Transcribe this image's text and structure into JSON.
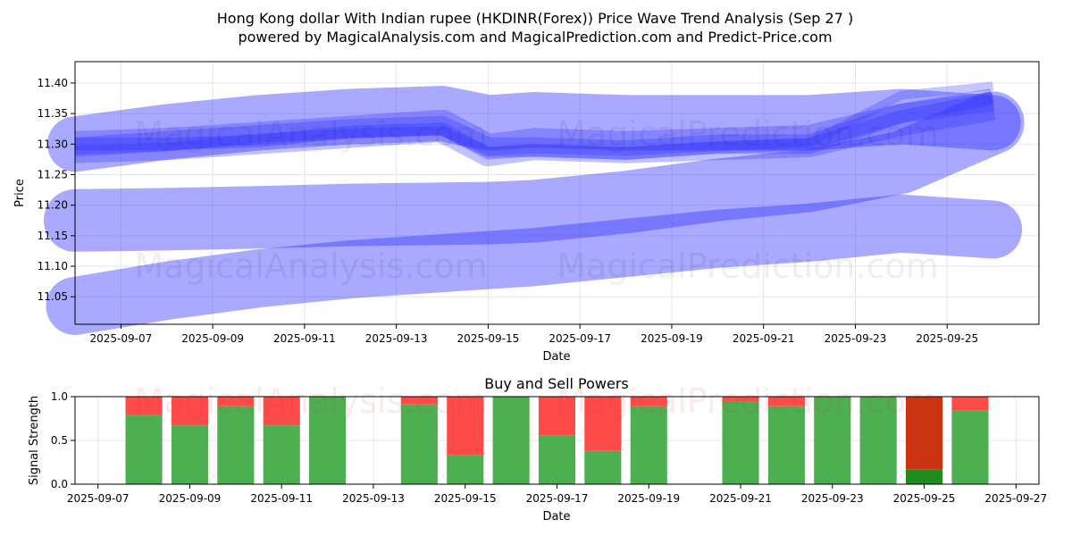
{
  "header": {
    "title_line1": "Hong Kong dollar With Indian rupee (HKDINR(Forex)) Price Wave Trend Analysis (Sep 27 )",
    "title_line2": "powered by MagicalAnalysis.com and MagicalPrediction.com and Predict-Price.com"
  },
  "watermarks": {
    "left": "MagicalAnalysis.com",
    "right": "MagicalPrediction.com"
  },
  "colors": {
    "wave": "#3333ff",
    "buy": "#4caf50",
    "sell": "#ff4a4a",
    "buy_dark": "#1e8c1e",
    "sell_dark": "#cc3311",
    "grid": "#e6e6e6"
  },
  "chart_data": [
    {
      "type": "line",
      "xlabel": "Date",
      "ylabel": "Price",
      "ylim": [
        11.005,
        11.435
      ],
      "xlim": [
        "2025-09-06",
        "2025-09-27"
      ],
      "grid": true,
      "x_ticks": [
        "2025-09-07",
        "2025-09-09",
        "2025-09-11",
        "2025-09-13",
        "2025-09-15",
        "2025-09-17",
        "2025-09-19",
        "2025-09-21",
        "2025-09-23",
        "2025-09-25"
      ],
      "y_ticks": [
        11.05,
        11.1,
        11.15,
        11.2,
        11.25,
        11.3,
        11.35,
        11.4
      ],
      "x": [
        "2025-09-06",
        "2025-09-08",
        "2025-09-10",
        "2025-09-12",
        "2025-09-14",
        "2025-09-15",
        "2025-09-16",
        "2025-09-18",
        "2025-09-20",
        "2025-09-22",
        "2025-09-24",
        "2025-09-26"
      ],
      "series": [
        {
          "values": [
            11.3,
            11.32,
            11.335,
            11.345,
            11.35,
            11.335,
            11.34,
            11.335,
            11.335,
            11.335,
            11.345,
            11.335
          ],
          "width": 62
        },
        {
          "values": [
            11.175,
            11.177,
            11.18,
            11.184,
            11.186,
            11.187,
            11.19,
            11.205,
            11.225,
            11.24,
            11.27,
            11.335
          ],
          "width": 70
        },
        {
          "values": [
            11.035,
            11.06,
            11.08,
            11.095,
            11.105,
            11.11,
            11.115,
            11.13,
            11.145,
            11.155,
            11.17,
            11.16
          ],
          "width": 65
        },
        {
          "values": [
            11.295,
            11.3,
            11.31,
            11.32,
            11.33,
            11.29,
            11.3,
            11.295,
            11.3,
            11.305,
            11.34,
            11.365
          ],
          "width": 36
        },
        {
          "values": [
            11.295,
            11.305,
            11.315,
            11.325,
            11.33,
            11.295,
            11.295,
            11.29,
            11.3,
            11.3,
            11.35,
            11.37
          ],
          "width": 22
        },
        {
          "values": [
            11.3,
            11.3,
            11.305,
            11.32,
            11.325,
            11.285,
            11.29,
            11.285,
            11.295,
            11.3,
            11.345,
            11.375
          ],
          "width": 14
        },
        {
          "values": [
            11.29,
            11.295,
            11.31,
            11.318,
            11.322,
            11.288,
            11.292,
            11.288,
            11.296,
            11.302,
            11.38,
            11.395
          ],
          "width": 10
        }
      ]
    },
    {
      "type": "bar",
      "title": "Buy and Sell Powers",
      "xlabel": "Date",
      "ylabel": "Signal Strength",
      "ylim": [
        0,
        1.0
      ],
      "xlim": [
        "2025-09-06 12:00",
        "2025-09-27 12:00"
      ],
      "grid": true,
      "x_ticks": [
        "2025-09-07",
        "2025-09-09",
        "2025-09-11",
        "2025-09-13",
        "2025-09-15",
        "2025-09-17",
        "2025-09-19",
        "2025-09-21",
        "2025-09-23",
        "2025-09-25",
        "2025-09-27"
      ],
      "y_ticks": [
        "0.0",
        "0.5",
        "1.0"
      ],
      "categories": [
        "2025-09-08",
        "2025-09-09",
        "2025-09-10",
        "2025-09-11",
        "2025-09-12",
        "2025-09-14",
        "2025-09-15",
        "2025-09-16",
        "2025-09-17",
        "2025-09-18",
        "2025-09-19",
        "2025-09-21",
        "2025-09-22",
        "2025-09-23",
        "2025-09-24",
        "2025-09-25",
        "2025-09-26"
      ],
      "buy": [
        0.79,
        0.67,
        0.89,
        0.67,
        1.0,
        0.91,
        0.33,
        1.0,
        0.56,
        0.38,
        0.89,
        0.94,
        0.89,
        1.0,
        1.0,
        0.17,
        0.84
      ],
      "highlight": [
        "",
        "",
        "",
        "",
        "",
        "",
        "",
        "",
        "",
        "",
        "",
        "",
        "",
        "",
        "",
        "2025-09-25",
        ""
      ]
    }
  ]
}
